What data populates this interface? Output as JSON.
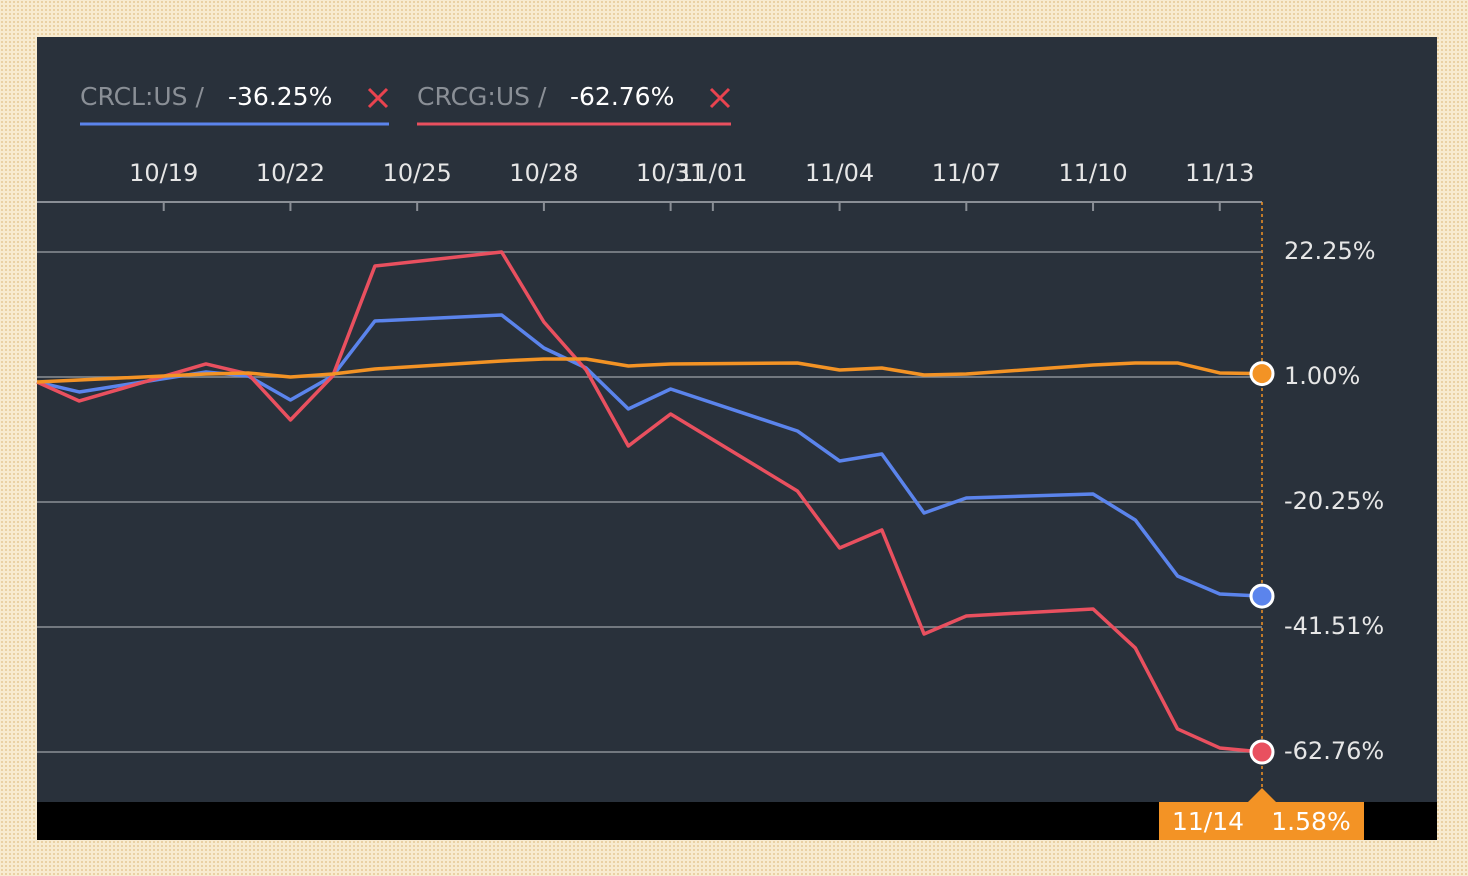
{
  "chart_data": {
    "type": "line",
    "x": [
      "10/16",
      "10/17",
      "10/20",
      "10/21",
      "10/22",
      "10/23",
      "10/24",
      "10/27",
      "10/28",
      "10/29",
      "10/30",
      "10/31",
      "11/03",
      "11/04",
      "11/05",
      "11/06",
      "11/07",
      "11/10",
      "11/11",
      "11/12",
      "11/13",
      "11/14"
    ],
    "series": [
      {
        "name": "CRCL:US /",
        "color": "#5b84ec",
        "last_label": "-36.25%",
        "values": [
          0.15,
          -1.55,
          1.85,
          1.17,
          -2.91,
          1.17,
          10.52,
          11.54,
          5.93,
          2.53,
          -4.44,
          -1.04,
          -8.18,
          -13.28,
          -12.09,
          -22.12,
          -19.57,
          -18.89,
          -23.31,
          -32.83,
          -35.89,
          -36.25
        ]
      },
      {
        "name": "CRCG:US /",
        "color": "#e9505f",
        "last_label": "-62.76%",
        "values": [
          0.15,
          -3.08,
          3.21,
          1.51,
          -6.31,
          1.17,
          19.87,
          22.25,
          10.35,
          2.19,
          -10.73,
          -5.29,
          -18.38,
          -28.07,
          -25.01,
          -42.69,
          -39.63,
          -38.44,
          -45.07,
          -58.84,
          -62.07,
          -62.76
        ]
      },
      {
        "color": "#f39325",
        "last_label": "1.58%",
        "values": [
          0.15,
          0.49,
          1.51,
          1.68,
          1.0,
          1.51,
          2.36,
          3.72,
          4.06,
          4.06,
          2.87,
          3.21,
          3.38,
          2.19,
          2.53,
          1.34,
          1.51,
          3.04,
          3.38,
          3.38,
          1.68,
          1.58
        ]
      }
    ],
    "xlim": [
      "10/16",
      "11/14"
    ],
    "xticks": [
      "10/19",
      "10/22",
      "10/25",
      "10/28",
      "10/31",
      "11/01",
      "11/04",
      "11/07",
      "11/10",
      "11/13"
    ],
    "ylim": [
      -71.26,
      30.75
    ],
    "yticks": [
      {
        "value": 22.25,
        "label": "22.25%"
      },
      {
        "value": 1.0,
        "label": "1.00%"
      },
      {
        "value": -20.25,
        "label": "-20.25%"
      },
      {
        "value": -41.51,
        "label": "-41.51%"
      },
      {
        "value": -62.76,
        "label": "-62.76%"
      }
    ],
    "grid": true
  }
}
